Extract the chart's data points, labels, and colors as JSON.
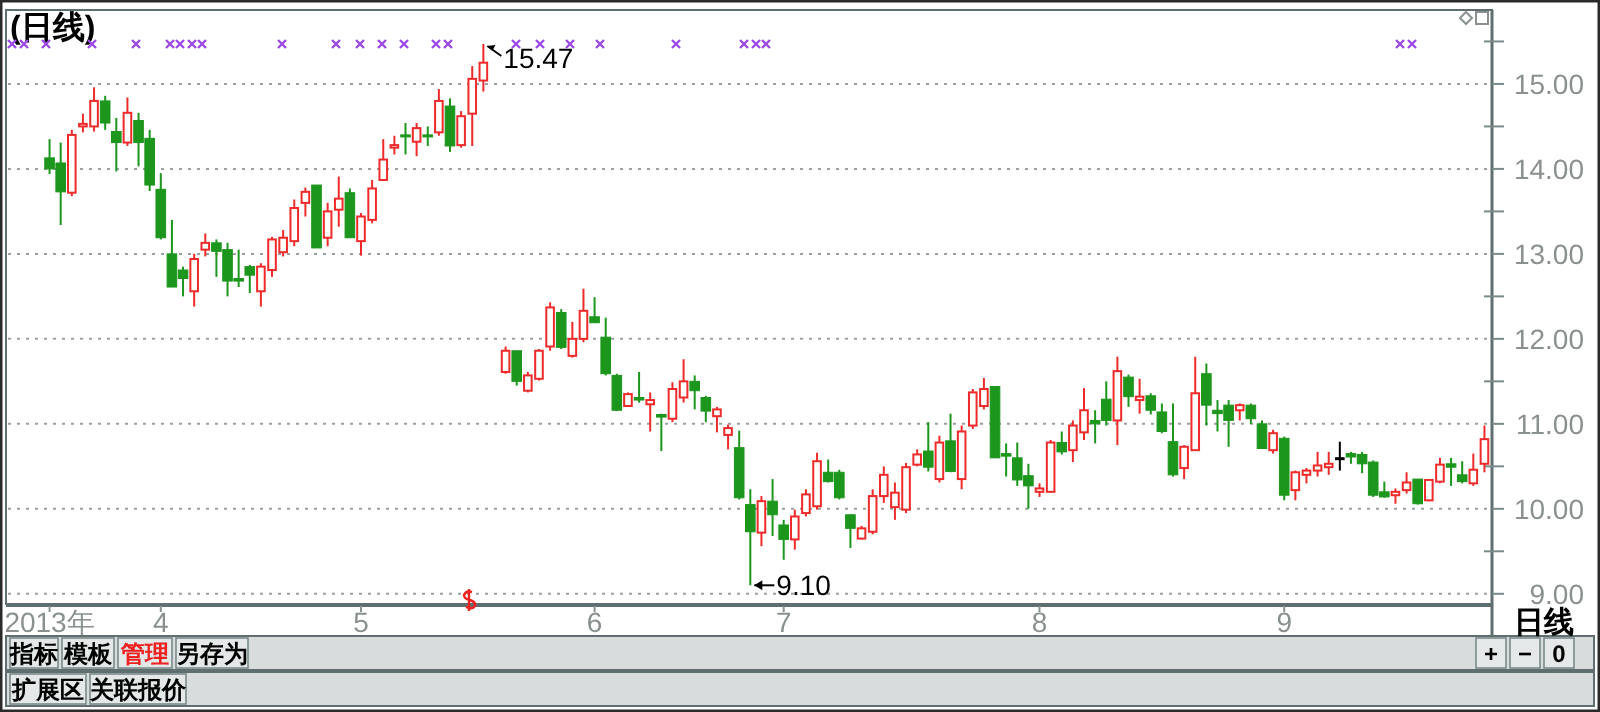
{
  "chart_data": {
    "type": "candlestick",
    "title": "(日线)",
    "categories": [
      "2013年",
      null,
      null,
      null,
      null,
      null,
      null,
      null,
      null,
      null,
      "4",
      null,
      null,
      null,
      null,
      null,
      null,
      null,
      null,
      null,
      null,
      null,
      null,
      null,
      null,
      null,
      null,
      null,
      "5",
      null,
      null,
      null,
      null,
      null,
      null,
      null,
      null,
      null,
      null,
      null,
      null,
      null,
      null,
      null,
      null,
      null,
      null,
      null,
      null,
      "6",
      null,
      null,
      null,
      null,
      null,
      null,
      null,
      null,
      null,
      null,
      null,
      null,
      null,
      null,
      null,
      null,
      "7",
      null,
      null,
      null,
      null,
      null,
      null,
      null,
      null,
      null,
      null,
      null,
      null,
      null,
      null,
      null,
      null,
      null,
      null,
      null,
      null,
      null,
      null,
      "8",
      null,
      null,
      null,
      null,
      null,
      null,
      null,
      null,
      null,
      null,
      null,
      null,
      null,
      null,
      null,
      null,
      null,
      null,
      null,
      null,
      null,
      "9",
      null,
      null,
      null,
      null,
      null,
      null,
      null,
      null,
      null,
      null,
      null,
      null,
      null,
      null,
      null,
      null,
      null,
      null
    ],
    "ohlc": [
      [
        14.13,
        14.35,
        13.94,
        14.0
      ],
      [
        14.07,
        14.31,
        13.34,
        13.73
      ],
      [
        13.72,
        14.46,
        13.68,
        14.4
      ],
      [
        14.5,
        14.65,
        14.43,
        14.53
      ],
      [
        14.5,
        14.96,
        14.44,
        14.8
      ],
      [
        14.8,
        14.86,
        14.46,
        14.54
      ],
      [
        14.44,
        14.6,
        13.97,
        14.31
      ],
      [
        14.31,
        14.84,
        14.27,
        14.66
      ],
      [
        14.57,
        14.66,
        14.03,
        14.31
      ],
      [
        14.36,
        14.46,
        13.74,
        13.81
      ],
      [
        13.76,
        13.95,
        13.17,
        13.19
      ],
      [
        13.0,
        13.4,
        12.61,
        12.61
      ],
      [
        12.81,
        12.85,
        12.5,
        12.71
      ],
      [
        12.56,
        13.0,
        12.38,
        12.94
      ],
      [
        13.05,
        13.24,
        12.97,
        13.13
      ],
      [
        13.13,
        13.17,
        12.73,
        13.03
      ],
      [
        13.05,
        13.13,
        12.5,
        12.68
      ],
      [
        12.71,
        13.05,
        12.61,
        12.68
      ],
      [
        12.85,
        12.87,
        12.54,
        12.75
      ],
      [
        12.56,
        12.89,
        12.38,
        12.85
      ],
      [
        12.81,
        13.2,
        12.73,
        13.17
      ],
      [
        13.02,
        13.28,
        12.97,
        13.19
      ],
      [
        13.15,
        13.64,
        13.09,
        13.54
      ],
      [
        13.6,
        13.78,
        13.44,
        13.73
      ],
      [
        13.81,
        13.81,
        13.07,
        13.07
      ],
      [
        13.19,
        13.6,
        13.09,
        13.5
      ],
      [
        13.52,
        13.91,
        13.32,
        13.65
      ],
      [
        13.72,
        13.77,
        13.19,
        13.19
      ],
      [
        13.15,
        13.48,
        12.98,
        13.44
      ],
      [
        13.4,
        13.87,
        13.36,
        13.77
      ],
      [
        13.87,
        14.35,
        13.87,
        14.11
      ],
      [
        14.25,
        14.39,
        14.17,
        14.28
      ],
      [
        14.4,
        14.54,
        14.17,
        14.38
      ],
      [
        14.32,
        14.54,
        14.15,
        14.48
      ],
      [
        14.4,
        14.5,
        14.27,
        14.38
      ],
      [
        14.43,
        14.94,
        14.39,
        14.8
      ],
      [
        14.74,
        14.83,
        14.2,
        14.27
      ],
      [
        14.28,
        14.68,
        14.25,
        14.62
      ],
      [
        14.65,
        15.21,
        14.27,
        15.06
      ],
      [
        15.04,
        15.47,
        14.91,
        15.25
      ],
      null,
      [
        11.61,
        11.91,
        11.59,
        11.86
      ],
      [
        11.86,
        11.86,
        11.45,
        11.5
      ],
      [
        11.39,
        11.61,
        11.37,
        11.57
      ],
      [
        11.53,
        11.88,
        11.51,
        11.86
      ],
      [
        11.91,
        12.43,
        11.86,
        12.37
      ],
      [
        12.31,
        12.35,
        11.88,
        11.9
      ],
      [
        11.8,
        12.2,
        11.78,
        12.0
      ],
      [
        12.0,
        12.59,
        11.96,
        12.33
      ],
      [
        12.26,
        12.49,
        12.19,
        12.19
      ],
      [
        12.02,
        12.25,
        11.57,
        11.59
      ],
      [
        11.57,
        11.59,
        11.15,
        11.16
      ],
      [
        11.21,
        11.37,
        11.2,
        11.35
      ],
      [
        11.31,
        11.61,
        11.25,
        11.28
      ],
      [
        11.23,
        11.37,
        10.91,
        11.28
      ],
      [
        11.11,
        11.12,
        10.68,
        11.08
      ],
      [
        11.06,
        11.49,
        11.02,
        11.41
      ],
      [
        11.31,
        11.76,
        11.25,
        11.5
      ],
      [
        11.5,
        11.57,
        11.17,
        11.39
      ],
      [
        11.31,
        11.33,
        11.02,
        11.15
      ],
      [
        11.09,
        11.2,
        10.9,
        11.17
      ],
      [
        10.87,
        10.99,
        10.7,
        10.95
      ],
      [
        10.72,
        10.92,
        10.11,
        10.13
      ],
      [
        10.05,
        10.23,
        9.1,
        9.73
      ],
      [
        9.72,
        10.15,
        9.56,
        10.09
      ],
      [
        10.09,
        10.35,
        9.68,
        9.93
      ],
      [
        9.81,
        9.87,
        9.4,
        9.64
      ],
      [
        9.64,
        9.99,
        9.52,
        9.91
      ],
      [
        9.95,
        10.23,
        9.91,
        10.17
      ],
      [
        10.03,
        10.66,
        9.99,
        10.56
      ],
      [
        10.43,
        10.58,
        10.31,
        10.32
      ],
      [
        10.43,
        10.46,
        10.11,
        10.13
      ],
      [
        9.93,
        9.93,
        9.54,
        9.77
      ],
      [
        9.65,
        9.8,
        9.64,
        9.77
      ],
      [
        9.73,
        10.23,
        9.7,
        10.15
      ],
      [
        10.15,
        10.5,
        10.07,
        10.4
      ],
      [
        10.02,
        10.31,
        9.87,
        10.19
      ],
      [
        9.99,
        10.54,
        9.95,
        10.49
      ],
      [
        10.52,
        10.7,
        10.5,
        10.64
      ],
      [
        10.68,
        11.02,
        10.44,
        10.49
      ],
      [
        10.35,
        10.86,
        10.31,
        10.78
      ],
      [
        10.8,
        11.12,
        10.43,
        10.44
      ],
      [
        10.35,
        10.98,
        10.23,
        10.91
      ],
      [
        10.98,
        11.41,
        10.94,
        11.37
      ],
      [
        11.21,
        11.54,
        11.17,
        11.41
      ],
      [
        11.44,
        11.44,
        10.6,
        10.6
      ],
      [
        10.65,
        10.77,
        10.38,
        10.62
      ],
      [
        10.6,
        10.78,
        10.27,
        10.34
      ],
      [
        10.39,
        10.53,
        10.0,
        10.27
      ],
      [
        10.2,
        10.3,
        10.14,
        10.24
      ],
      [
        10.2,
        10.81,
        10.2,
        10.78
      ],
      [
        10.78,
        10.91,
        10.64,
        10.67
      ],
      [
        10.69,
        11.04,
        10.55,
        10.98
      ],
      [
        10.9,
        11.42,
        10.81,
        11.16
      ],
      [
        11.04,
        11.16,
        10.77,
        11.0
      ],
      [
        11.29,
        11.5,
        10.98,
        11.04
      ],
      [
        11.04,
        11.79,
        10.75,
        11.62
      ],
      [
        11.55,
        11.58,
        11.2,
        11.32
      ],
      [
        11.28,
        11.53,
        11.12,
        11.32
      ],
      [
        11.33,
        11.36,
        11.11,
        11.16
      ],
      [
        11.14,
        11.24,
        10.89,
        10.91
      ],
      [
        10.79,
        11.24,
        10.38,
        10.4
      ],
      [
        10.48,
        10.75,
        10.35,
        10.73
      ],
      [
        10.69,
        11.79,
        10.69,
        11.36
      ],
      [
        11.59,
        11.71,
        10.98,
        11.22
      ],
      [
        11.16,
        11.28,
        10.91,
        11.12
      ],
      [
        11.22,
        11.28,
        10.73,
        11.04
      ],
      [
        11.16,
        11.24,
        11.04,
        11.22
      ],
      [
        11.22,
        11.24,
        11.0,
        11.06
      ],
      [
        11.0,
        11.04,
        10.71,
        10.71
      ],
      [
        10.69,
        10.93,
        10.65,
        10.89
      ],
      [
        10.83,
        10.85,
        10.1,
        10.16
      ],
      [
        10.22,
        10.45,
        10.1,
        10.43
      ],
      [
        10.4,
        10.48,
        10.3,
        10.45
      ],
      [
        10.45,
        10.67,
        10.38,
        10.51
      ],
      [
        10.49,
        10.67,
        10.4,
        10.53
      ],
      [
        10.59,
        10.79,
        10.45,
        10.59
      ],
      [
        10.65,
        10.67,
        10.53,
        10.61
      ],
      [
        10.64,
        10.67,
        10.42,
        10.53
      ],
      [
        10.55,
        10.57,
        10.14,
        10.16
      ],
      [
        10.2,
        10.32,
        10.13,
        10.14
      ],
      [
        10.16,
        10.24,
        10.06,
        10.2
      ],
      [
        10.22,
        10.43,
        10.18,
        10.31
      ],
      [
        10.35,
        10.35,
        10.05,
        10.06
      ],
      [
        10.1,
        10.35,
        10.09,
        10.34
      ],
      [
        10.32,
        10.6,
        10.3,
        10.52
      ],
      [
        10.53,
        10.6,
        10.27,
        10.49
      ],
      [
        10.4,
        10.56,
        10.3,
        10.32
      ],
      [
        10.3,
        10.65,
        10.27,
        10.46
      ],
      [
        10.53,
        10.98,
        10.43,
        10.82
      ]
    ],
    "colors": [
      "#1c961c",
      "#1c961c",
      "#ee2a2a",
      "#ee2a2a",
      "#ee2a2a",
      "#1c961c",
      "#1c961c",
      "#ee2a2a",
      "#1c961c",
      "#1c961c",
      "#1c961c",
      "#1c961c",
      "#1c961c",
      "#ee2a2a",
      "#ee2a2a",
      "#1c961c",
      "#1c961c",
      "#1c961c",
      "#1c961c",
      "#ee2a2a",
      "#ee2a2a",
      "#ee2a2a",
      "#ee2a2a",
      "#ee2a2a",
      "#1c961c",
      "#ee2a2a",
      "#ee2a2a",
      "#1c961c",
      "#ee2a2a",
      "#ee2a2a",
      "#ee2a2a",
      "#ee2a2a",
      "#1c961c",
      "#ee2a2a",
      "#1c961c",
      "#ee2a2a",
      "#1c961c",
      "#ee2a2a",
      "#ee2a2a",
      "#ee2a2a",
      null,
      "#ee2a2a",
      "#1c961c",
      "#ee2a2a",
      "#ee2a2a",
      "#ee2a2a",
      "#1c961c",
      "#ee2a2a",
      "#ee2a2a",
      "#1c961c",
      "#1c961c",
      "#1c961c",
      "#ee2a2a",
      "#1c961c",
      "#ee2a2a",
      "#1c961c",
      "#ee2a2a",
      "#ee2a2a",
      "#1c961c",
      "#1c961c",
      "#ee2a2a",
      "#ee2a2a",
      "#1c961c",
      "#1c961c",
      "#ee2a2a",
      "#1c961c",
      "#1c961c",
      "#ee2a2a",
      "#ee2a2a",
      "#ee2a2a",
      "#1c961c",
      "#1c961c",
      "#1c961c",
      "#ee2a2a",
      "#ee2a2a",
      "#ee2a2a",
      "#ee2a2a",
      "#ee2a2a",
      "#ee2a2a",
      "#1c961c",
      "#ee2a2a",
      "#1c961c",
      "#ee2a2a",
      "#ee2a2a",
      "#ee2a2a",
      "#1c961c",
      "#1c961c",
      "#1c961c",
      "#1c961c",
      "#ee2a2a",
      "#ee2a2a",
      "#1c961c",
      "#ee2a2a",
      "#ee2a2a",
      "#1c961c",
      "#1c961c",
      "#ee2a2a",
      "#1c961c",
      "#ee2a2a",
      "#1c961c",
      "#1c961c",
      "#1c961c",
      "#ee2a2a",
      "#ee2a2a",
      "#1c961c",
      "#1c961c",
      "#1c961c",
      "#ee2a2a",
      "#1c961c",
      "#1c961c",
      "#ee2a2a",
      "#1c961c",
      "#ee2a2a",
      "#ee2a2a",
      "#ee2a2a",
      "#ee2a2a",
      "#000000",
      "#1c961c",
      "#1c961c",
      "#1c961c",
      "#1c961c",
      "#ee2a2a",
      "#ee2a2a",
      "#1c961c",
      "#ee2a2a",
      "#ee2a2a",
      "#1c961c",
      "#1c961c",
      "#ee2a2a",
      "#ee2a2a"
    ],
    "ylim": [
      8.88,
      15.87
    ],
    "yticks": [
      {
        "value": 9,
        "label": "9.00"
      },
      {
        "value": 9.5,
        "label": null
      },
      {
        "value": 10,
        "label": "10.00"
      },
      {
        "value": 10.5,
        "label": null
      },
      {
        "value": 11,
        "label": "11.00"
      },
      {
        "value": 11.5,
        "label": null
      },
      {
        "value": 12,
        "label": "12.00"
      },
      {
        "value": 12.5,
        "label": null
      },
      {
        "value": 13,
        "label": "13.00"
      },
      {
        "value": 13.5,
        "label": null
      },
      {
        "value": 14,
        "label": "14.00"
      },
      {
        "value": 14.5,
        "label": null
      },
      {
        "value": 15,
        "label": "15.00"
      },
      {
        "value": 15.5,
        "label": null
      }
    ],
    "grid": "y",
    "annotations": [
      "15.47",
      "9.10",
      "指标",
      "模板",
      "管理",
      "另存为",
      "扩展区",
      "关联报价",
      "+",
      "−",
      "0",
      "日线"
    ]
  }
}
